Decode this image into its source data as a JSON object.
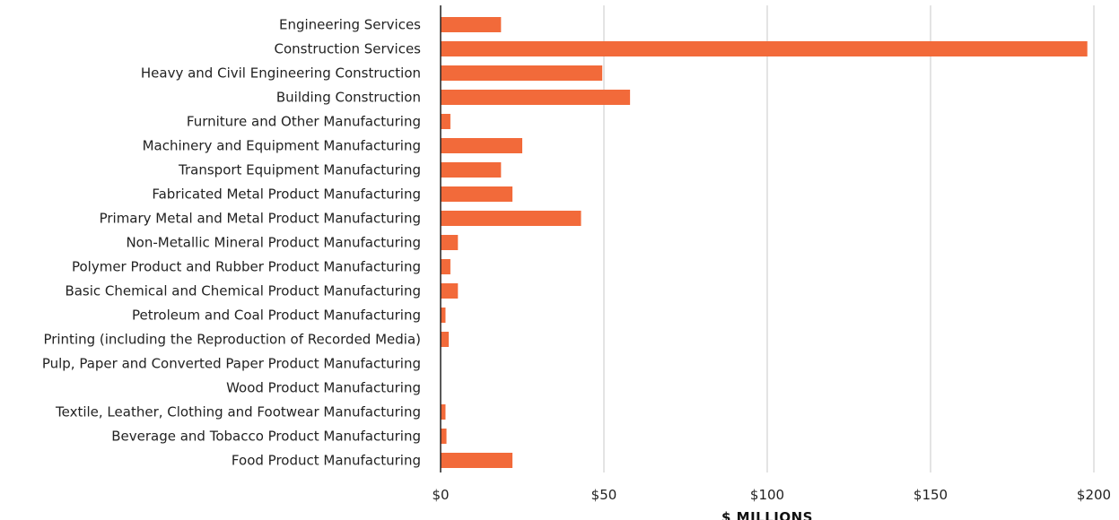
{
  "chart_data": {
    "type": "bar",
    "orientation": "horizontal",
    "categories": [
      "Engineering Services",
      "Construction Services",
      "Heavy and Civil Engineering Construction",
      "Building Construction",
      "Furniture and Other Manufacturing",
      "Machinery and Equipment Manufacturing",
      "Transport Equipment Manufacturing",
      "Fabricated Metal Product Manufacturing",
      "Primary Metal and Metal Product Manufacturing",
      "Non-Metallic Mineral Product Manufacturing",
      "Polymer Product and Rubber Product Manufacturing",
      "Basic Chemical and Chemical Product Manufacturing",
      "Petroleum and Coal Product Manufacturing",
      "Printing (including the Reproduction of Recorded Media)",
      "Pulp, Paper and Converted Paper Product Manufacturing",
      "Wood Product Manufacturing",
      "Textile, Leather, Clothing and Footwear Manufacturing",
      "Beverage and Tobacco Product Manufacturing",
      "Food Product Manufacturing"
    ],
    "values": [
      18.5,
      198,
      49.5,
      58,
      3,
      25,
      18.5,
      22,
      43,
      5.3,
      3,
      5.3,
      1.5,
      2.5,
      0,
      0,
      1.5,
      1.8,
      22
    ],
    "xlabel": "$ MILLIONS",
    "ylabel": "",
    "xlim": [
      0,
      200
    ],
    "x_ticks": [
      0,
      50,
      100,
      150,
      200
    ],
    "x_tick_labels": [
      "$0",
      "$50",
      "$100",
      "$150",
      "$200"
    ],
    "grid": "vertical",
    "bar_color": "#f26a3a",
    "grid_color": "#c8c8c8",
    "axis_color": "#222222"
  }
}
